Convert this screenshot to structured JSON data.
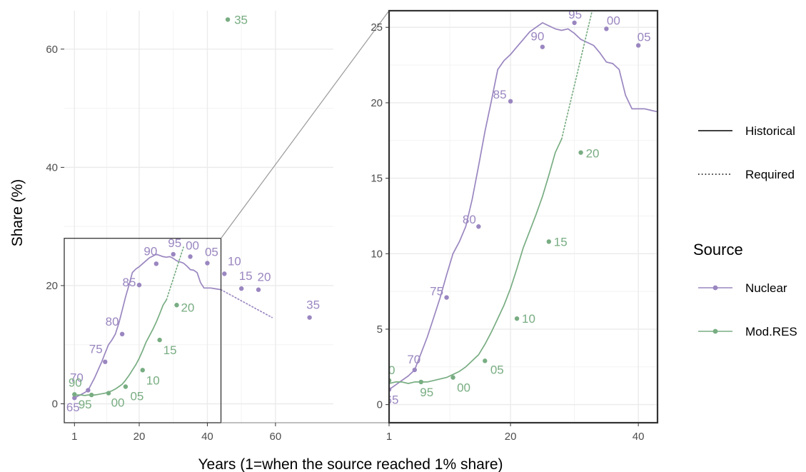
{
  "chart_data": {
    "type": "line",
    "xlabel": "Years (1=when the source reached 1% share)",
    "ylabel": "Share (%)",
    "colors": {
      "Nuclear": "#9a86c0",
      "Mod.RES": "#78ad82"
    },
    "main_panel": {
      "xlim": [
        -2,
        77
      ],
      "ylim": [
        -3.2,
        66.5
      ],
      "x_ticks": [
        1,
        20,
        40,
        60
      ],
      "y_ticks": [
        0,
        20,
        40,
        60
      ],
      "inset_box": {
        "x": [
          -2,
          44
        ],
        "y": [
          -3.2,
          28
        ]
      }
    },
    "zoom_panel": {
      "xlim": [
        1,
        43
      ],
      "ylim": [
        -1.2,
        26.1
      ],
      "x_ticks": [
        1,
        20,
        40
      ],
      "y_ticks": [
        0,
        5,
        10,
        15,
        20,
        25
      ]
    },
    "series": [
      {
        "name": "Nuclear",
        "historical": [
          [
            1,
            1.0
          ],
          [
            2,
            1.3
          ],
          [
            3,
            1.6
          ],
          [
            4,
            1.9
          ],
          [
            5,
            2.3
          ],
          [
            6,
            3.4
          ],
          [
            7,
            4.5
          ],
          [
            8,
            5.8
          ],
          [
            9,
            7.1
          ],
          [
            10,
            8.6
          ],
          [
            11,
            10.0
          ],
          [
            12,
            10.8
          ],
          [
            13,
            11.8
          ],
          [
            14,
            13.6
          ],
          [
            15,
            15.8
          ],
          [
            16,
            18.1
          ],
          [
            17,
            20.1
          ],
          [
            18,
            22.2
          ],
          [
            19,
            22.8
          ],
          [
            20,
            23.2
          ],
          [
            21,
            23.7
          ],
          [
            22,
            24.2
          ],
          [
            23,
            24.7
          ],
          [
            24,
            25.0
          ],
          [
            25,
            25.3
          ],
          [
            26,
            25.1
          ],
          [
            27,
            24.9
          ],
          [
            28,
            24.8
          ],
          [
            29,
            24.9
          ],
          [
            30,
            24.6
          ],
          [
            31,
            24.2
          ],
          [
            32,
            24.0
          ],
          [
            33,
            23.8
          ],
          [
            34,
            23.3
          ],
          [
            35,
            22.7
          ],
          [
            36,
            22.6
          ],
          [
            37,
            22.2
          ],
          [
            38,
            20.5
          ],
          [
            39,
            19.6
          ],
          [
            40,
            19.6
          ],
          [
            41,
            19.6
          ],
          [
            42,
            19.5
          ],
          [
            43,
            19.4
          ],
          [
            44,
            19.3
          ]
        ],
        "required": [
          [
            44,
            19.3
          ],
          [
            59,
            14.6
          ]
        ],
        "points": [
          {
            "x": 1,
            "y": 1.0,
            "label": "65"
          },
          {
            "x": 5,
            "y": 2.3,
            "label": "70"
          },
          {
            "x": 10,
            "y": 7.1,
            "label": "75"
          },
          {
            "x": 15,
            "y": 11.8,
            "label": "80"
          },
          {
            "x": 20,
            "y": 20.1,
            "label": "85"
          },
          {
            "x": 25,
            "y": 23.7,
            "label": "90"
          },
          {
            "x": 30,
            "y": 25.3,
            "label": "95"
          },
          {
            "x": 35,
            "y": 24.9,
            "label": "00"
          },
          {
            "x": 40,
            "y": 23.8,
            "label": "05"
          },
          {
            "x": 45,
            "y": 22.0,
            "label": "10"
          },
          {
            "x": 50,
            "y": 19.5,
            "label": "15"
          },
          {
            "x": 55,
            "y": 19.3,
            "label": "20"
          },
          {
            "x": 70,
            "y": 14.6,
            "label": "35"
          }
        ]
      },
      {
        "name": "Mod.RES",
        "historical": [
          [
            1,
            1.4
          ],
          [
            2,
            1.5
          ],
          [
            3,
            1.5
          ],
          [
            4,
            1.4
          ],
          [
            5,
            1.5
          ],
          [
            6,
            1.5
          ],
          [
            7,
            1.5
          ],
          [
            8,
            1.6
          ],
          [
            9,
            1.7
          ],
          [
            10,
            1.8
          ],
          [
            11,
            2.0
          ],
          [
            12,
            2.2
          ],
          [
            13,
            2.5
          ],
          [
            14,
            2.9
          ],
          [
            15,
            3.3
          ],
          [
            16,
            4.0
          ],
          [
            17,
            4.8
          ],
          [
            18,
            5.7
          ],
          [
            19,
            6.6
          ],
          [
            20,
            7.7
          ],
          [
            21,
            9.0
          ],
          [
            22,
            10.4
          ],
          [
            23,
            11.5
          ],
          [
            24,
            12.6
          ],
          [
            25,
            13.8
          ],
          [
            26,
            15.2
          ],
          [
            27,
            16.7
          ],
          [
            28,
            17.6
          ]
        ],
        "required": [
          [
            28,
            17.6
          ],
          [
            33,
            26.5
          ]
        ],
        "points": [
          {
            "x": 1,
            "y": 1.6,
            "label": "90"
          },
          {
            "x": 6,
            "y": 1.5,
            "label": "95"
          },
          {
            "x": 11,
            "y": 1.8,
            "label": "00"
          },
          {
            "x": 16,
            "y": 2.9,
            "label": "05"
          },
          {
            "x": 21,
            "y": 5.7,
            "label": "10"
          },
          {
            "x": 26,
            "y": 10.8,
            "label": "15"
          },
          {
            "x": 31,
            "y": 16.7,
            "label": "20"
          },
          {
            "x": 46,
            "y": 65.0,
            "label": "35"
          }
        ]
      }
    ],
    "legend": {
      "linetype": [
        {
          "label": "Historical",
          "style": "solid"
        },
        {
          "label": "Required",
          "style": "dotted"
        }
      ],
      "title": "Source",
      "source": [
        "Nuclear",
        "Mod.RES"
      ]
    }
  }
}
